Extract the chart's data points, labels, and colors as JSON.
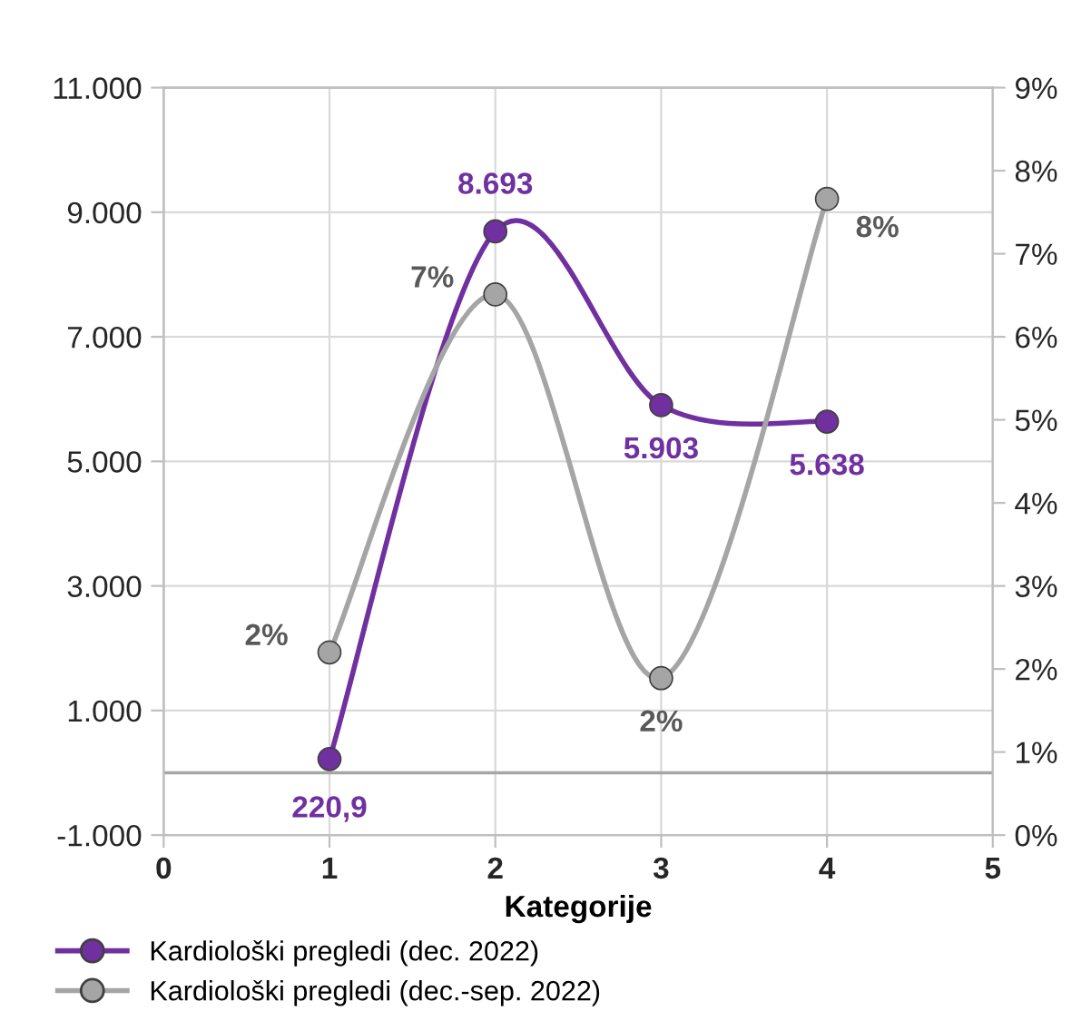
{
  "chart_data": {
    "type": "line",
    "xlabel": "Kategorije",
    "x": [
      1,
      2,
      3,
      4
    ],
    "series": [
      {
        "name": "Kardiološki pregledi (dec. 2022)",
        "color": "#7030a0",
        "values": [
          220.9,
          8693,
          5903,
          5638
        ],
        "value_labels": [
          "220,9",
          "8.693",
          "5.903",
          "5.638"
        ]
      },
      {
        "name": "Kardiološki pregledi (dec.-sep. 2022)",
        "color": "#a5a5a5",
        "axis": "y2",
        "values": [
          2.2,
          6.51,
          1.89,
          7.66
        ],
        "value_labels": [
          "2%",
          "7%",
          "2%",
          "8%"
        ]
      }
    ],
    "xlim": [
      0,
      5
    ],
    "xticks": [
      0,
      1,
      2,
      3,
      4,
      5
    ],
    "ylim": [
      -1000,
      11000
    ],
    "yticks": [
      {
        "value": -1000,
        "label": "-1.000"
      },
      {
        "value": 1000,
        "label": "1.000"
      },
      {
        "value": 3000,
        "label": "3.000"
      },
      {
        "value": 5000,
        "label": "5.000"
      },
      {
        "value": 7000,
        "label": "7.000"
      },
      {
        "value": 9000,
        "label": "9.000"
      },
      {
        "value": 11000,
        "label": "11.000"
      }
    ],
    "y2lim": [
      0,
      9
    ],
    "y2ticks": [
      {
        "value": 0,
        "label": "0%"
      },
      {
        "value": 1,
        "label": "1%"
      },
      {
        "value": 2,
        "label": "2%"
      },
      {
        "value": 3,
        "label": "3%"
      },
      {
        "value": 4,
        "label": "4%"
      },
      {
        "value": 5,
        "label": "5%"
      },
      {
        "value": 6,
        "label": "6%"
      },
      {
        "value": 7,
        "label": "7%"
      },
      {
        "value": 8,
        "label": "8%"
      },
      {
        "value": 9,
        "label": "9%"
      }
    ],
    "ref_lines": [
      {
        "axis": "y",
        "value": 0,
        "color": "#a6a6a6"
      }
    ],
    "grid": true,
    "legend": "bottom",
    "marker": "circle",
    "line_style": "solid"
  }
}
